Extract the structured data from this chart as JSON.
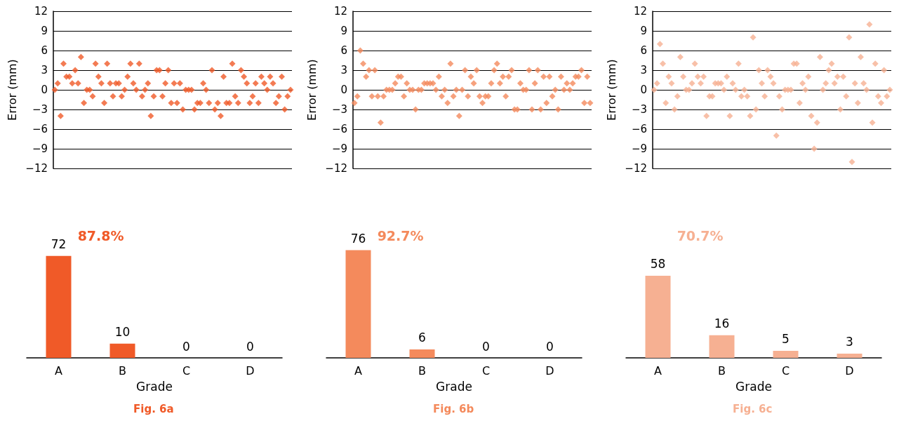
{
  "chart_data": [
    {
      "type": "scatter",
      "ylabel": "Error (mm)",
      "color": "#f05a28",
      "marker": "diamond",
      "grid": "y",
      "tick_labels": "y",
      "ylim": [
        -12,
        12
      ],
      "yticks": [
        -12,
        -9,
        -6,
        -3,
        0,
        3,
        6,
        9,
        12
      ],
      "categories": [
        null,
        null,
        null,
        null,
        null,
        null,
        null,
        null,
        null,
        null,
        null,
        null,
        null,
        null,
        null,
        null,
        null,
        null,
        null,
        null,
        null,
        null,
        null,
        null,
        null,
        null,
        null,
        null,
        null,
        null,
        null,
        null,
        null,
        null,
        null,
        null,
        null,
        null,
        null,
        null,
        null,
        null,
        null,
        null,
        null,
        null,
        null,
        null,
        null,
        null,
        null,
        null,
        null,
        null,
        null,
        null,
        null,
        null,
        null,
        null,
        null,
        null,
        null,
        null,
        null,
        null,
        null,
        null,
        null,
        null,
        null,
        null,
        null,
        null,
        null,
        null,
        null,
        null,
        null,
        null,
        null,
        null
      ],
      "values": [
        0,
        1,
        -4,
        4,
        2,
        2,
        1,
        3,
        1,
        5,
        -2,
        0,
        0,
        -1,
        4,
        2,
        1,
        -2,
        4,
        1,
        -1,
        1,
        1,
        -1,
        0,
        2,
        4,
        1,
        0,
        4,
        -1,
        0,
        1,
        -4,
        -1,
        3,
        3,
        -1,
        1,
        3,
        -2,
        1,
        -2,
        1,
        -3,
        0,
        0,
        0,
        -3,
        -2,
        -2,
        1,
        0,
        -2,
        3,
        -3,
        -2,
        -4,
        2,
        -2,
        -2,
        4,
        -1,
        -2,
        3,
        2,
        1,
        -2,
        -1,
        1,
        -2,
        2,
        1,
        0,
        2,
        1,
        -2,
        -1,
        2,
        -3,
        -1,
        0
      ]
    },
    {
      "type": "scatter",
      "ylabel": "Error (mm)",
      "color": "#f48a5c",
      "marker": "diamond",
      "grid": "y",
      "tick_labels": "y",
      "ylim": [
        -12,
        12
      ],
      "yticks": [
        -12,
        -9,
        -6,
        -3,
        0,
        3,
        6,
        9,
        12
      ],
      "categories": [
        null,
        null,
        null,
        null,
        null,
        null,
        null,
        null,
        null,
        null,
        null,
        null,
        null,
        null,
        null,
        null,
        null,
        null,
        null,
        null,
        null,
        null,
        null,
        null,
        null,
        null,
        null,
        null,
        null,
        null,
        null,
        null,
        null,
        null,
        null,
        null,
        null,
        null,
        null,
        null,
        null,
        null,
        null,
        null,
        null,
        null,
        null,
        null,
        null,
        null,
        null,
        null,
        null,
        null,
        null,
        null,
        null,
        null,
        null,
        null,
        null,
        null,
        null,
        null,
        null,
        null,
        null,
        null,
        null,
        null,
        null,
        null,
        null,
        null,
        null,
        null,
        null,
        null,
        null,
        null,
        null,
        null
      ],
      "values": [
        -2,
        -1,
        6,
        4,
        2,
        3,
        -1,
        3,
        -1,
        -5,
        -1,
        0,
        0,
        0,
        1,
        2,
        2,
        -1,
        1,
        0,
        0,
        -3,
        0,
        0,
        1,
        1,
        1,
        1,
        0,
        2,
        -1,
        0,
        -2,
        4,
        -1,
        0,
        -4,
        0,
        3,
        -1,
        2,
        1,
        3,
        -1,
        -2,
        -1,
        -1,
        1,
        3,
        4,
        1,
        2,
        -1,
        2,
        3,
        -3,
        -3,
        1,
        0,
        0,
        3,
        -3,
        1,
        3,
        -3,
        2,
        -2,
        2,
        -1,
        0,
        -3,
        2,
        0,
        1,
        0,
        1,
        2,
        2,
        3,
        -2,
        2,
        -2
      ]
    },
    {
      "type": "scatter",
      "ylabel": "Error (mm)",
      "color": "#f6b092",
      "marker": "diamond",
      "grid": "y",
      "tick_labels": "y",
      "ylim": [
        -12,
        12
      ],
      "yticks": [
        -12,
        -9,
        -6,
        -3,
        0,
        3,
        6,
        9,
        12
      ],
      "categories": [
        null,
        null,
        null,
        null,
        null,
        null,
        null,
        null,
        null,
        null,
        null,
        null,
        null,
        null,
        null,
        null,
        null,
        null,
        null,
        null,
        null,
        null,
        null,
        null,
        null,
        null,
        null,
        null,
        null,
        null,
        null,
        null,
        null,
        null,
        null,
        null,
        null,
        null,
        null,
        null,
        null,
        null,
        null,
        null,
        null,
        null,
        null,
        null,
        null,
        null,
        null,
        null,
        null,
        null,
        null,
        null,
        null,
        null,
        null,
        null,
        null,
        null,
        null,
        null,
        null,
        null,
        null,
        null,
        null,
        null,
        null,
        null,
        null,
        null,
        null,
        null,
        null,
        null,
        null,
        null,
        null,
        null
      ],
      "values": [
        0,
        1,
        7,
        4,
        -2,
        2,
        1,
        -3,
        -1,
        5,
        2,
        0,
        0,
        1,
        4,
        2,
        1,
        2,
        -4,
        -1,
        -1,
        1,
        1,
        1,
        0,
        2,
        -4,
        1,
        0,
        4,
        -1,
        0,
        -1,
        -4,
        8,
        -3,
        3,
        1,
        -1,
        3,
        2,
        1,
        -7,
        -1,
        -3,
        0,
        0,
        0,
        4,
        4,
        -2,
        1,
        0,
        2,
        -4,
        -9,
        -5,
        5,
        0,
        1,
        3,
        4,
        1,
        2,
        -3,
        2,
        -1,
        8,
        -11,
        1,
        -2,
        5,
        1,
        0,
        10,
        -5,
        4,
        -1,
        -2,
        3,
        -1,
        0
      ]
    },
    {
      "type": "bar",
      "xlabel": "Grade",
      "color": "#f05a28",
      "categories": [
        "A",
        "B",
        "C",
        "D"
      ],
      "values": [
        72,
        10,
        0,
        0
      ],
      "tick_labels": "x",
      "data_labels": true,
      "annotations": [
        "87.8%",
        "Fig. 6a"
      ]
    },
    {
      "type": "bar",
      "xlabel": "Grade",
      "color": "#f48a5c",
      "categories": [
        "A",
        "B",
        "C",
        "D"
      ],
      "values": [
        76,
        6,
        0,
        0
      ],
      "tick_labels": "x",
      "data_labels": true,
      "annotations": [
        "92.7%",
        "Fig. 6b"
      ]
    },
    {
      "type": "bar",
      "xlabel": "Grade",
      "color": "#f6b092",
      "categories": [
        "A",
        "B",
        "C",
        "D"
      ],
      "values": [
        58,
        16,
        5,
        3
      ],
      "tick_labels": "x",
      "data_labels": true,
      "annotations": [
        "70.7%",
        "Fig. 6c"
      ]
    }
  ]
}
